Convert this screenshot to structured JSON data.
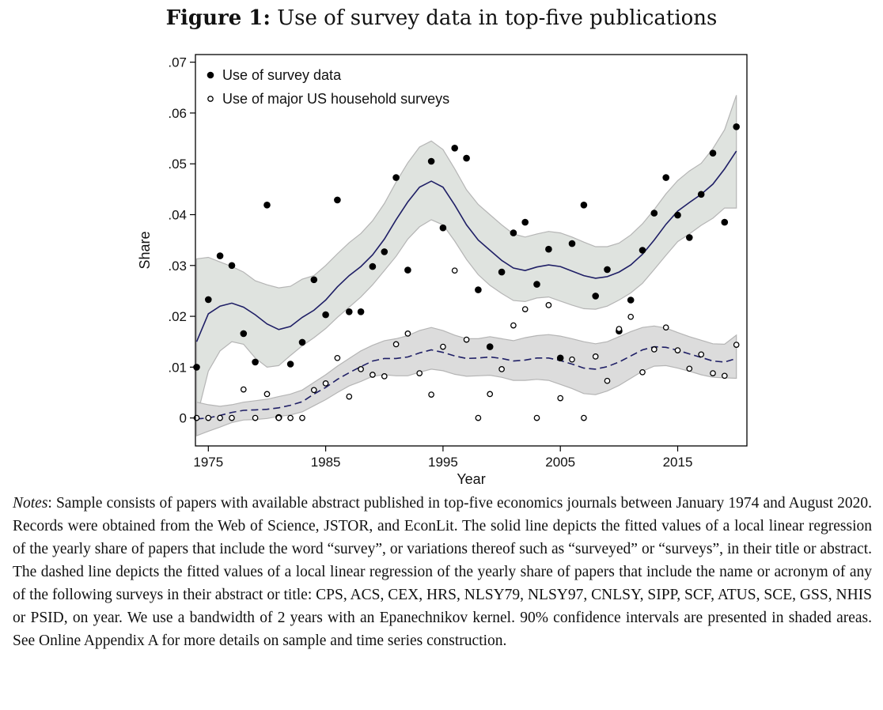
{
  "figure": {
    "label": "Figure 1:",
    "title": "Use of survey data in top-five publications"
  },
  "notes": {
    "label": "Notes",
    "text": ": Sample consists of papers with available abstract published in top-five economics journals between January 1974 and August 2020. Records were obtained from the Web of Science, JSTOR, and EconLit. The solid line depicts the fitted values of a local linear regression of the yearly share of papers that include the word “survey”, or variations thereof such as “surveyed” or “surveys”, in their title or abstract. The dashed line depicts the fitted values of a local linear regression of the yearly share of papers that include the name or acronym of any of the following surveys in their abstract or title: CPS, ACS, CEX, HRS, NLSY79, NLSY97, CNLSY, SIPP, SCF, ATUS, SCE, GSS, NHIS or PSID, on year. We use a bandwidth of 2 years with an Epanechnikov kernel. 90% confidence intervals are presented in shaded areas. See Online Appendix A for more details on sample and time series construction."
  },
  "colors": {
    "fit_line": "#1f1f66",
    "band_fill": "#dfe3df",
    "band_fill_2": "#dcdcdc",
    "band_edge": "#b5b5b5",
    "dots": "#000000"
  },
  "chart_data": {
    "type": "scatter",
    "xlabel": "Year",
    "ylabel": "Share",
    "xlim": [
      1973.9,
      2020.9
    ],
    "ylim": [
      -0.0055,
      0.0715
    ],
    "xticks": [
      1975,
      1985,
      1995,
      2005,
      2015
    ],
    "xtick_labels": [
      "1975",
      "1985",
      "1995",
      "2005",
      "2015"
    ],
    "yticks": [
      0,
      0.01,
      0.02,
      0.03,
      0.04,
      0.05,
      0.06,
      0.07
    ],
    "ytick_labels": [
      "0",
      ".01",
      ".02",
      ".03",
      ".04",
      ".05",
      ".06",
      ".07"
    ],
    "legend": {
      "position": "top-left",
      "entries": [
        "Use of survey data",
        "Use of major US household surveys"
      ]
    },
    "series": [
      {
        "name": "Use of survey data",
        "marker": "filled-circle",
        "x": [
          1974,
          1975,
          1976,
          1977,
          1978,
          1979,
          1980,
          1981,
          1982,
          1983,
          1984,
          1985,
          1986,
          1987,
          1988,
          1989,
          1990,
          1991,
          1992,
          1994,
          1995,
          1996,
          1997,
          1998,
          1999,
          2000,
          2001,
          2002,
          2003,
          2004,
          2005,
          2006,
          2007,
          2008,
          2009,
          2010,
          2011,
          2012,
          2013,
          2014,
          2015,
          2016,
          2017,
          2018,
          2019,
          2020
        ],
        "values": [
          0.01,
          0.0233,
          0.0319,
          0.03,
          0.0166,
          0.011,
          0.0419,
          0.0001,
          0.0106,
          0.0149,
          0.0272,
          0.0203,
          0.0429,
          0.0209,
          0.0209,
          0.0298,
          0.0327,
          0.0473,
          0.0291,
          0.0505,
          0.0374,
          0.0531,
          0.0511,
          0.0252,
          0.014,
          0.0287,
          0.0364,
          0.0385,
          0.0263,
          0.0332,
          0.0118,
          0.0343,
          0.0419,
          0.024,
          0.0292,
          0.0171,
          0.0232,
          0.033,
          0.0403,
          0.0473,
          0.0399,
          0.0355,
          0.044,
          0.0521,
          0.0385,
          0.0573
        ]
      },
      {
        "name": "Use of major US household surveys",
        "marker": "hollow-circle",
        "x": [
          1974,
          1975,
          1976,
          1977,
          1978,
          1979,
          1980,
          1981,
          1982,
          1983,
          1984,
          1985,
          1986,
          1987,
          1988,
          1989,
          1990,
          1991,
          1992,
          1993,
          1994,
          1995,
          1996,
          1997,
          1998,
          1999,
          2000,
          2001,
          2002,
          2003,
          2004,
          2005,
          2006,
          2007,
          2008,
          2009,
          2010,
          2011,
          2012,
          2013,
          2014,
          2015,
          2016,
          2017,
          2018,
          2019,
          2020
        ],
        "values": [
          0,
          0,
          0,
          0,
          0.0056,
          0,
          0.0047,
          0,
          0,
          0,
          0.0055,
          0.0068,
          0.0118,
          0.0042,
          0.0096,
          0.0085,
          0.0082,
          0.0145,
          0.0166,
          0.0088,
          0.0046,
          0.014,
          0.029,
          0.0154,
          0,
          0.0047,
          0.0096,
          0.0182,
          0.0214,
          0,
          0.0222,
          0.0039,
          0.0115,
          0,
          0.0121,
          0.0073,
          0.0175,
          0.0199,
          0.009,
          0.0135,
          0.0178,
          0.0133,
          0.0097,
          0.0125,
          0.0088,
          0.0083,
          0.0144
        ]
      }
    ],
    "fits": [
      {
        "name": "Use of survey data (local linear fit)",
        "style": "solid",
        "x": [
          1974,
          1975,
          1976,
          1977,
          1978,
          1979,
          1980,
          1981,
          1982,
          1983,
          1984,
          1985,
          1986,
          1987,
          1988,
          1989,
          1990,
          1991,
          1992,
          1993,
          1994,
          1995,
          1996,
          1997,
          1998,
          1999,
          2000,
          2001,
          2002,
          2003,
          2004,
          2005,
          2006,
          2007,
          2008,
          2009,
          2010,
          2011,
          2012,
          2013,
          2014,
          2015,
          2016,
          2017,
          2018,
          2019,
          2020
        ],
        "values": [
          0.015,
          0.0205,
          0.022,
          0.0226,
          0.0218,
          0.0203,
          0.0185,
          0.0174,
          0.018,
          0.0198,
          0.0212,
          0.0232,
          0.0258,
          0.028,
          0.0298,
          0.0321,
          0.0352,
          0.039,
          0.0425,
          0.0454,
          0.0466,
          0.0454,
          0.0419,
          0.038,
          0.035,
          0.033,
          0.031,
          0.0295,
          0.029,
          0.0297,
          0.0301,
          0.0298,
          0.0289,
          0.028,
          0.0275,
          0.0278,
          0.0287,
          0.0301,
          0.0322,
          0.035,
          0.0381,
          0.0407,
          0.0424,
          0.044,
          0.046,
          0.049,
          0.0525
        ],
        "ci_lower": [
          0.0,
          0.0092,
          0.0132,
          0.015,
          0.0145,
          0.0118,
          0.01,
          0.0103,
          0.0123,
          0.0142,
          0.0158,
          0.0176,
          0.0198,
          0.0218,
          0.0238,
          0.0262,
          0.029,
          0.0318,
          0.0352,
          0.0376,
          0.039,
          0.038,
          0.0348,
          0.0312,
          0.0282,
          0.0261,
          0.0245,
          0.0231,
          0.0229,
          0.0236,
          0.0238,
          0.023,
          0.0222,
          0.0215,
          0.0214,
          0.022,
          0.0232,
          0.0246,
          0.0265,
          0.0292,
          0.032,
          0.0347,
          0.0362,
          0.0379,
          0.0393,
          0.0413,
          0.0413
        ],
        "ci_upper": [
          0.0313,
          0.0316,
          0.0307,
          0.0298,
          0.0287,
          0.027,
          0.0262,
          0.0256,
          0.0259,
          0.0273,
          0.028,
          0.03,
          0.0323,
          0.0345,
          0.0363,
          0.0388,
          0.0422,
          0.0464,
          0.0502,
          0.0533,
          0.0545,
          0.0528,
          0.049,
          0.0449,
          0.042,
          0.04,
          0.038,
          0.0362,
          0.0356,
          0.0362,
          0.0367,
          0.0364,
          0.0356,
          0.0346,
          0.0337,
          0.0337,
          0.0344,
          0.036,
          0.0382,
          0.041,
          0.0441,
          0.0467,
          0.0486,
          0.0501,
          0.053,
          0.0567,
          0.0635
        ]
      },
      {
        "name": "Use of major US household surveys (local linear fit)",
        "style": "dashed",
        "x": [
          1974,
          1975,
          1976,
          1977,
          1978,
          1979,
          1980,
          1981,
          1982,
          1983,
          1984,
          1985,
          1986,
          1987,
          1988,
          1989,
          1990,
          1991,
          1992,
          1993,
          1994,
          1995,
          1996,
          1997,
          1998,
          1999,
          2000,
          2001,
          2002,
          2003,
          2004,
          2005,
          2006,
          2007,
          2008,
          2009,
          2010,
          2011,
          2012,
          2013,
          2014,
          2015,
          2016,
          2017,
          2018,
          2019,
          2020
        ],
        "values": [
          -0.0002,
          0.0,
          0.0005,
          0.0011,
          0.0015,
          0.0016,
          0.0017,
          0.002,
          0.0025,
          0.0032,
          0.0047,
          0.006,
          0.0076,
          0.0089,
          0.0101,
          0.0112,
          0.0117,
          0.0117,
          0.012,
          0.0128,
          0.0134,
          0.0129,
          0.0122,
          0.0117,
          0.0118,
          0.012,
          0.0117,
          0.0112,
          0.0114,
          0.0118,
          0.0118,
          0.0113,
          0.0106,
          0.0098,
          0.0096,
          0.0101,
          0.011,
          0.0122,
          0.0134,
          0.014,
          0.0139,
          0.0133,
          0.0126,
          0.0119,
          0.0112,
          0.011,
          0.0117
        ],
        "ci_lower": [
          -0.0035,
          -0.0026,
          -0.0018,
          -0.0009,
          -0.0004,
          -0.0003,
          -0.0001,
          0.0003,
          0.0006,
          0.0012,
          0.0024,
          0.0036,
          0.005,
          0.0063,
          0.0072,
          0.0082,
          0.0085,
          0.0083,
          0.0083,
          0.009,
          0.0096,
          0.0093,
          0.0086,
          0.0082,
          0.0083,
          0.0084,
          0.008,
          0.0074,
          0.0074,
          0.0076,
          0.0074,
          0.0066,
          0.0058,
          0.0048,
          0.0046,
          0.0053,
          0.0064,
          0.0078,
          0.0092,
          0.0102,
          0.0103,
          0.0098,
          0.0092,
          0.0085,
          0.008,
          0.0079,
          0.0078
        ],
        "ci_upper": [
          0.0031,
          0.0026,
          0.0023,
          0.0026,
          0.0031,
          0.0034,
          0.0037,
          0.0042,
          0.0047,
          0.0055,
          0.007,
          0.0085,
          0.0102,
          0.0117,
          0.0132,
          0.0143,
          0.0152,
          0.0156,
          0.0162,
          0.0172,
          0.0178,
          0.0172,
          0.0163,
          0.0156,
          0.0156,
          0.016,
          0.0156,
          0.0152,
          0.0158,
          0.0162,
          0.0164,
          0.0161,
          0.0156,
          0.015,
          0.0146,
          0.015,
          0.016,
          0.017,
          0.0178,
          0.0181,
          0.0177,
          0.0168,
          0.016,
          0.0153,
          0.0146,
          0.0145,
          0.0163
        ]
      }
    ]
  }
}
